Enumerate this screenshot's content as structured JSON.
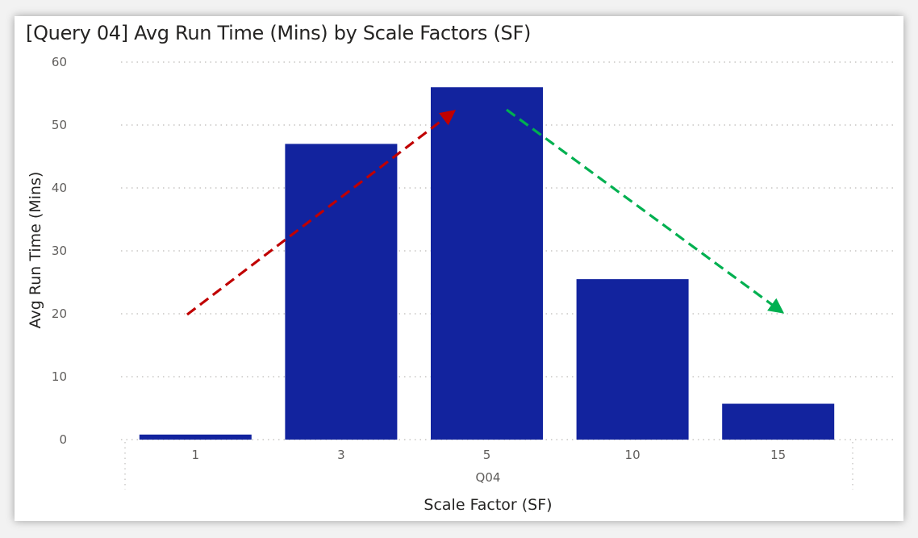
{
  "chart_data": {
    "type": "bar",
    "title": "[Query 04] Avg Run Time (Mins) by Scale Factors (SF)",
    "xlabel": "Scale Factor (SF)",
    "ylabel": "Avg Run Time (Mins)",
    "group_label": "Q04",
    "categories": [
      "1",
      "3",
      "5",
      "10",
      "15"
    ],
    "values": [
      0.8,
      47,
      56,
      25.5,
      5.7
    ],
    "ylim": [
      0,
      60
    ],
    "yticks": [
      0,
      10,
      20,
      30,
      40,
      50,
      60
    ],
    "grid": true,
    "bar_color": "#12239e",
    "annotations": [
      {
        "type": "arrow",
        "style": "dashed",
        "color": "#c00000",
        "direction": "increasing"
      },
      {
        "type": "arrow",
        "style": "dashed",
        "color": "#00b050",
        "direction": "decreasing"
      }
    ]
  }
}
